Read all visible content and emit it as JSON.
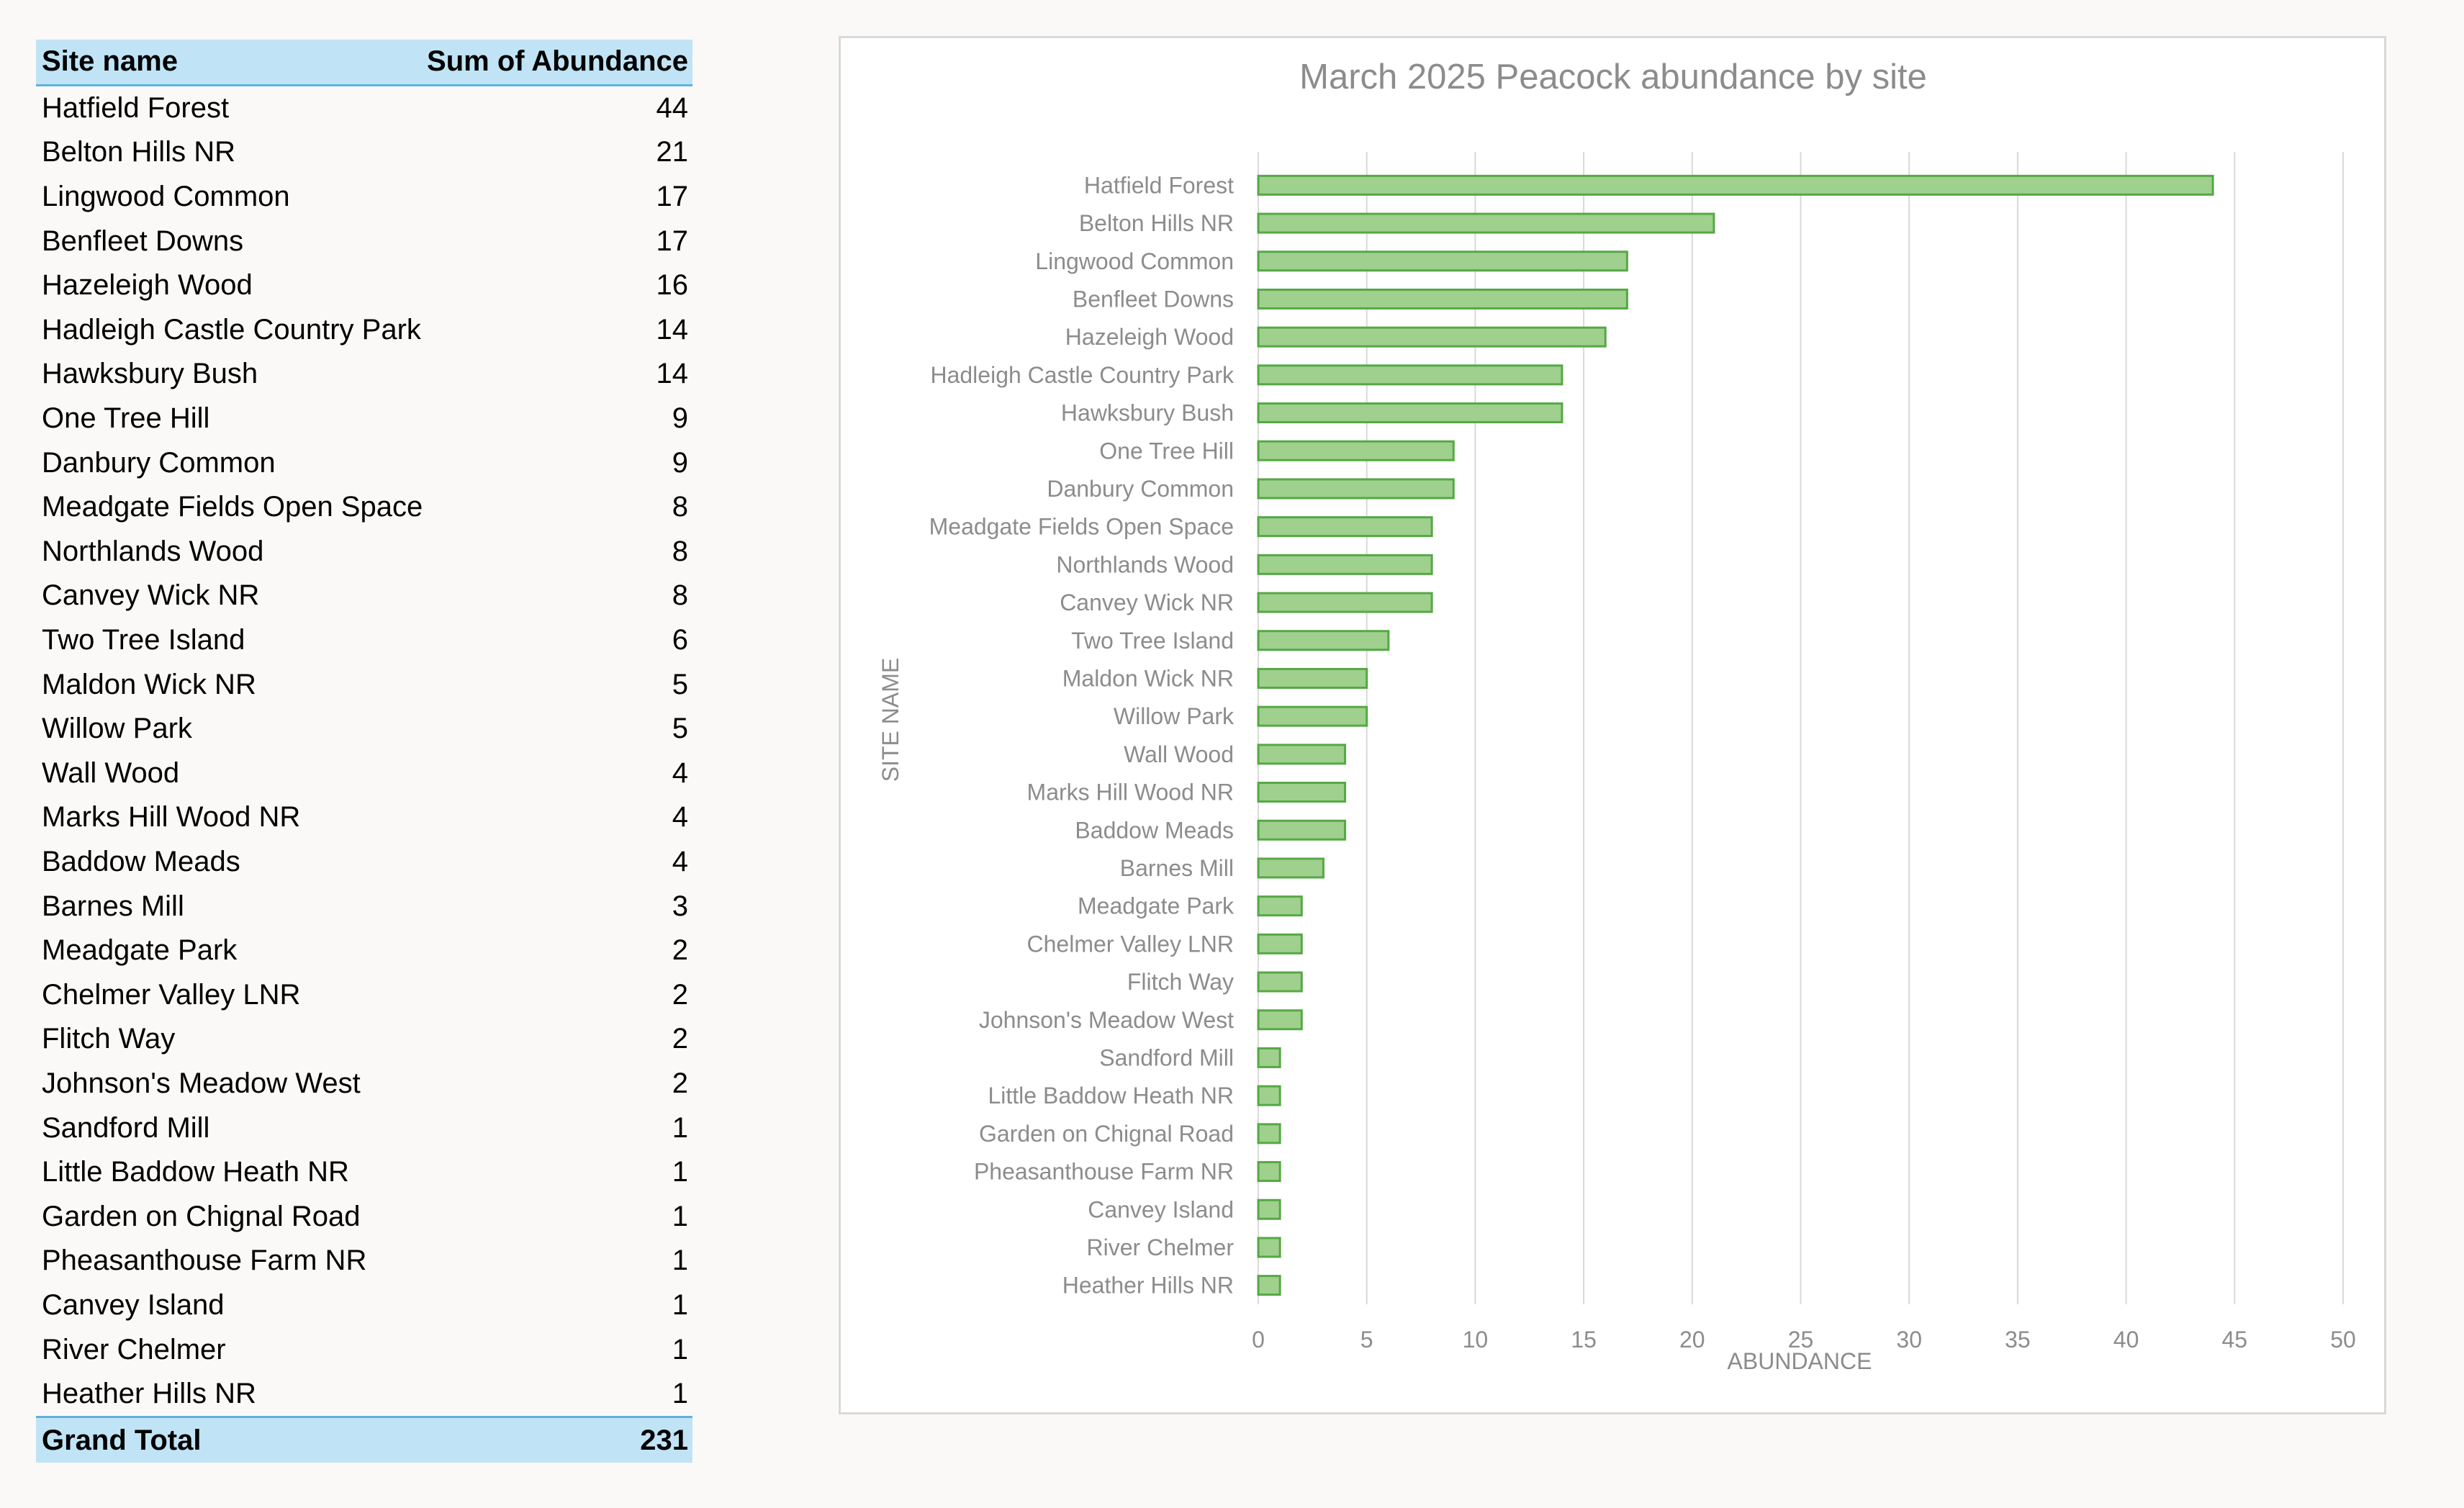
{
  "table": {
    "header_site": "Site name",
    "header_sum": "Sum of Abundance",
    "total_label": "Grand Total",
    "total_value": "231",
    "rows": [
      {
        "site": "Hatfield Forest",
        "value": "44"
      },
      {
        "site": "Belton Hills NR",
        "value": "21"
      },
      {
        "site": "Lingwood Common",
        "value": "17"
      },
      {
        "site": "Benfleet Downs",
        "value": "17"
      },
      {
        "site": "Hazeleigh Wood",
        "value": "16"
      },
      {
        "site": "Hadleigh Castle Country Park",
        "value": "14"
      },
      {
        "site": "Hawksbury Bush",
        "value": "14"
      },
      {
        "site": "One Tree Hill",
        "value": "9"
      },
      {
        "site": "Danbury Common",
        "value": "9"
      },
      {
        "site": "Meadgate Fields Open Space",
        "value": "8"
      },
      {
        "site": "Northlands Wood",
        "value": "8"
      },
      {
        "site": "Canvey Wick NR",
        "value": "8"
      },
      {
        "site": "Two Tree Island",
        "value": "6"
      },
      {
        "site": "Maldon Wick NR",
        "value": "5"
      },
      {
        "site": "Willow Park",
        "value": "5"
      },
      {
        "site": "Wall Wood",
        "value": "4"
      },
      {
        "site": "Marks Hill Wood NR",
        "value": "4"
      },
      {
        "site": "Baddow Meads",
        "value": "4"
      },
      {
        "site": "Barnes Mill",
        "value": "3"
      },
      {
        "site": "Meadgate Park",
        "value": "2"
      },
      {
        "site": "Chelmer Valley LNR",
        "value": "2"
      },
      {
        "site": "Flitch Way",
        "value": "2"
      },
      {
        "site": "Johnson's Meadow West",
        "value": "2"
      },
      {
        "site": "Sandford Mill",
        "value": "1"
      },
      {
        "site": "Little Baddow Heath NR",
        "value": "1"
      },
      {
        "site": "Garden on Chignal Road",
        "value": "1"
      },
      {
        "site": "Pheasanthouse Farm NR",
        "value": "1"
      },
      {
        "site": "Canvey Island",
        "value": "1"
      },
      {
        "site": "River Chelmer",
        "value": "1"
      },
      {
        "site": "Heather Hills NR",
        "value": "1"
      }
    ]
  },
  "chart_data": {
    "type": "bar",
    "orientation": "horizontal",
    "title": "March 2025 Peacock abundance by site",
    "xlabel": "ABUNDANCE",
    "ylabel": "SITE NAME",
    "xlim": [
      0,
      50
    ],
    "xticks": [
      0,
      5,
      10,
      15,
      20,
      25,
      30,
      35,
      40,
      45,
      50
    ],
    "grid": "vertical",
    "legend": "none",
    "bar_fill": "#9fd08d",
    "bar_edge": "#56a845",
    "categories": [
      "Hatfield Forest",
      "Belton Hills NR",
      "Lingwood Common",
      "Benfleet Downs",
      "Hazeleigh Wood",
      "Hadleigh Castle Country Park",
      "Hawksbury Bush",
      "One Tree Hill",
      "Danbury Common",
      "Meadgate Fields Open Space",
      "Northlands Wood",
      "Canvey Wick NR",
      "Two Tree Island",
      "Maldon Wick NR",
      "Willow Park",
      "Wall Wood",
      "Marks Hill Wood NR",
      "Baddow Meads",
      "Barnes Mill",
      "Meadgate Park",
      "Chelmer Valley LNR",
      "Flitch Way",
      "Johnson's Meadow West",
      "Sandford Mill",
      "Little Baddow Heath NR",
      "Garden on Chignal Road",
      "Pheasanthouse Farm NR",
      "Canvey Island",
      "River Chelmer",
      "Heather Hills NR"
    ],
    "values": [
      44,
      21,
      17,
      17,
      16,
      14,
      14,
      9,
      9,
      8,
      8,
      8,
      6,
      5,
      5,
      4,
      4,
      4,
      3,
      2,
      2,
      2,
      2,
      1,
      1,
      1,
      1,
      1,
      1,
      1
    ]
  }
}
